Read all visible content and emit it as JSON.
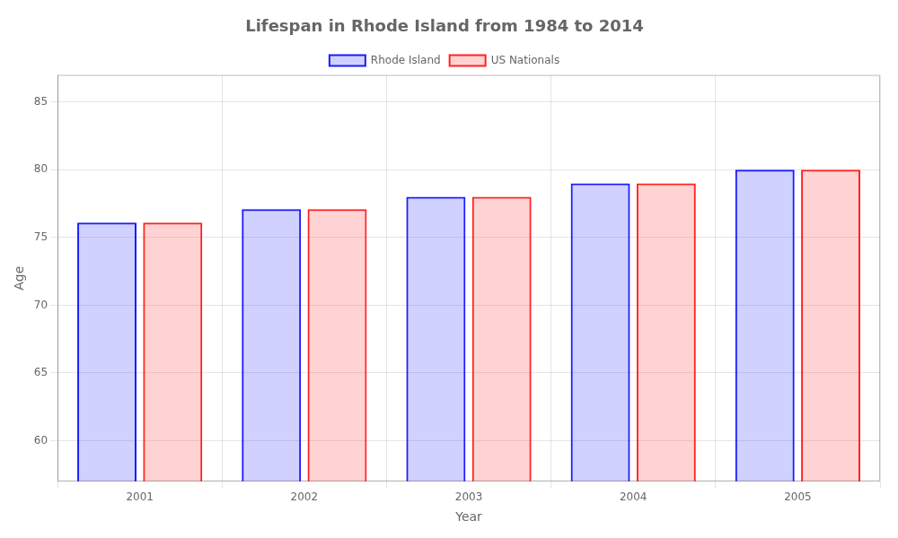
{
  "chart_data": {
    "type": "bar",
    "title": "Lifespan in Rhode Island from 1984 to 2014",
    "x_label": "Year",
    "y_label": "Age",
    "categories": [
      "2001",
      "2002",
      "2003",
      "2004",
      "2005"
    ],
    "series": [
      {
        "name": "Rhode Island",
        "color": "#1a1aff",
        "values": [
          76.1,
          77.1,
          78.0,
          79.0,
          80.0
        ]
      },
      {
        "name": "US Nationals",
        "color": "#ff2222",
        "values": [
          76.1,
          77.1,
          78.0,
          79.0,
          80.0
        ]
      }
    ],
    "ylim": [
      57,
      87
    ],
    "yticks": [
      60,
      65,
      70,
      75,
      80,
      85
    ],
    "grid": true,
    "legend": "top"
  }
}
